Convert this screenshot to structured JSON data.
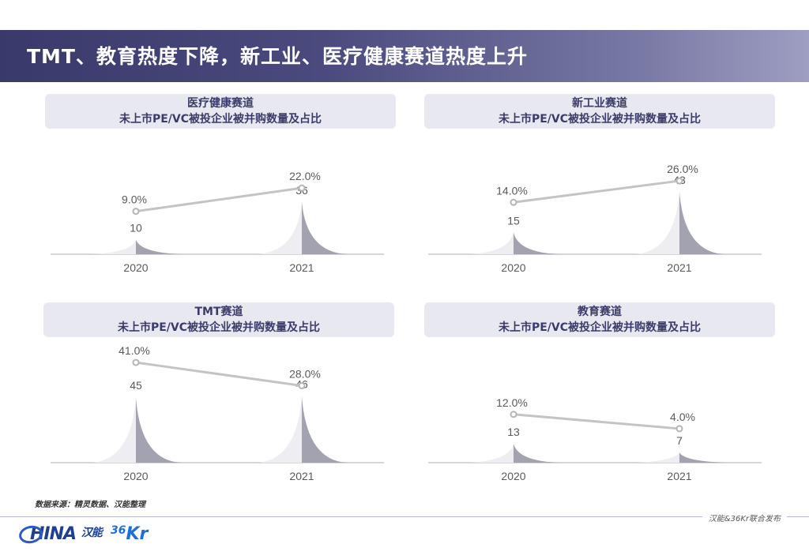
{
  "page": {
    "title": "TMT、教育热度下降，新工业、医疗健康赛道热度上升",
    "source_note": "数据来源：精灵数据、汉能整理",
    "release_note": "汉能&36Kr联合发布",
    "logos": {
      "china": "HINA",
      "china_cn": "汉能",
      "kr_num": "36",
      "kr_text": "Kr"
    }
  },
  "colors": {
    "header_band": "#4a4a7e",
    "panel_header_bg": "#e8e8f1",
    "panel_header_text": "#3b3b6a",
    "peak_dark": "#a2a2b0",
    "peak_light": "#eeeef2",
    "line": "#c4c4c4"
  },
  "chart_data": [
    {
      "type": "area",
      "title": "医疗健康赛道",
      "subtitle": "未上市PE/VC被投企业被并购数量及占比",
      "categories": [
        "2020",
        "2021"
      ],
      "series": [
        {
          "values": [
            10,
            36
          ],
          "labels": [
            "10",
            "36"
          ]
        },
        {
          "values": [
            9.0,
            22.0
          ],
          "labels": [
            "9.0%",
            "22.0%"
          ]
        }
      ]
    },
    {
      "type": "area",
      "title": "新工业赛道",
      "subtitle": "未上市PE/VC被投企业被并购数量及占比",
      "categories": [
        "2020",
        "2021"
      ],
      "series": [
        {
          "values": [
            15,
            43
          ],
          "labels": [
            "15",
            "43"
          ]
        },
        {
          "values": [
            14.0,
            26.0
          ],
          "labels": [
            "14.0%",
            "26.0%"
          ]
        }
      ]
    },
    {
      "type": "area",
      "title": "TMT赛道",
      "subtitle": "未上市PE/VC被投企业被并购数量及占比",
      "categories": [
        "2020",
        "2021"
      ],
      "series": [
        {
          "values": [
            45,
            46
          ],
          "labels": [
            "45",
            "46"
          ]
        },
        {
          "values": [
            41.0,
            28.0
          ],
          "labels": [
            "41.0%",
            "28.0%"
          ]
        }
      ]
    },
    {
      "type": "area",
      "title": "教育赛道",
      "subtitle": "未上市PE/VC被投企业被并购数量及占比",
      "categories": [
        "2020",
        "2021"
      ],
      "series": [
        {
          "values": [
            13,
            7
          ],
          "labels": [
            "13",
            "7"
          ]
        },
        {
          "values": [
            12.0,
            4.0
          ],
          "labels": [
            "12.0%",
            "4.0%"
          ]
        }
      ]
    }
  ]
}
